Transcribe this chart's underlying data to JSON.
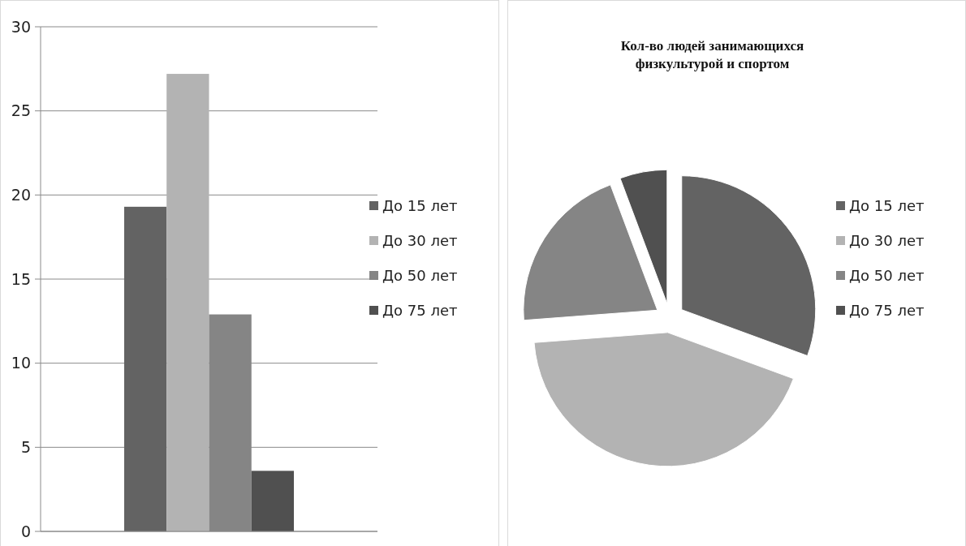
{
  "chart_data": [
    {
      "type": "bar",
      "categories": [
        null
      ],
      "series": [
        {
          "name": "До 15 лет",
          "color": "#636363",
          "values": [
            19.3
          ]
        },
        {
          "name": "До 30 лет",
          "color": "#b3b3b3",
          "values": [
            27.2
          ]
        },
        {
          "name": "До 50 лет",
          "color": "#858585",
          "values": [
            12.9
          ]
        },
        {
          "name": "До 75 лет",
          "color": "#505050",
          "values": [
            3.6
          ]
        }
      ],
      "ylim": [
        0,
        30
      ],
      "yticks": [
        0,
        5,
        10,
        15,
        20,
        25,
        30
      ],
      "grid": "y",
      "legend": "right",
      "tick_labels": "y"
    },
    {
      "type": "pie",
      "title": "Кол-во людей занимающихся физкультурой и спортом",
      "categories": [
        "До 15 лет",
        "До 30 лет",
        "До 50 лет",
        "До 75 лет"
      ],
      "values": [
        30.6,
        43.2,
        20.5,
        5.7
      ],
      "colors": [
        "#636363",
        "#b3b3b3",
        "#858585",
        "#505050"
      ],
      "legend": "right"
    }
  ]
}
